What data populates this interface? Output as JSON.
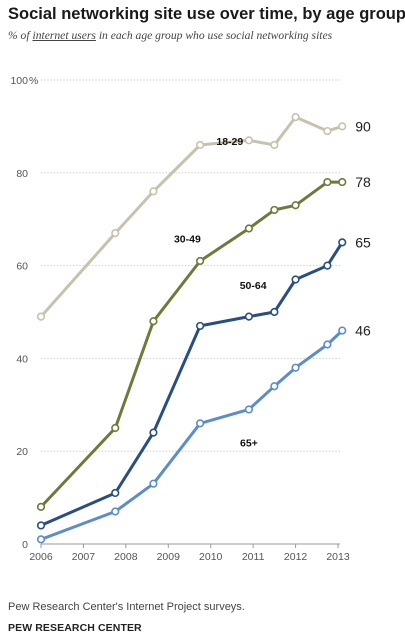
{
  "header": {
    "title": "Social networking site use over time, by age group",
    "subtitle_pre": "% of ",
    "subtitle_link": "internet users",
    "subtitle_post": " in each age group who use social networking sites"
  },
  "footer": {
    "source": "Pew Research Center's Internet Project surveys.",
    "org": "PEW RESEARCH CENTER"
  },
  "chart_data": {
    "type": "line",
    "title": "Social networking site use over time, by age group",
    "ylim": [
      0,
      100
    ],
    "xlim": [
      2006,
      2013
    ],
    "y_ticks": [
      {
        "value": 0,
        "label": "0"
      },
      {
        "value": 20,
        "label": "20"
      },
      {
        "value": 40,
        "label": "40"
      },
      {
        "value": 60,
        "label": "60"
      },
      {
        "value": 80,
        "label": "80"
      },
      {
        "value": 100,
        "label": "100"
      }
    ],
    "y_unit": "%",
    "x_ticks": [
      2006,
      2007,
      2008,
      2009,
      2010,
      2011,
      2012,
      2013
    ],
    "grid": true,
    "series": [
      {
        "name": "18-29",
        "color": "#c7c2ae",
        "points": [
          [
            2006.0,
            49
          ],
          [
            2007.75,
            67
          ],
          [
            2008.65,
            76
          ],
          [
            2009.75,
            86
          ],
          [
            2010.9,
            87
          ],
          [
            2011.5,
            86
          ],
          [
            2012.0,
            92
          ],
          [
            2012.75,
            89
          ],
          [
            2013.1,
            90
          ]
        ],
        "end_label": "90"
      },
      {
        "name": "30-49",
        "color": "#6e7a3b",
        "points": [
          [
            2006.0,
            8
          ],
          [
            2007.75,
            25
          ],
          [
            2008.65,
            48
          ],
          [
            2009.75,
            61
          ],
          [
            2010.9,
            68
          ],
          [
            2011.5,
            72
          ],
          [
            2012.0,
            73
          ],
          [
            2012.75,
            78
          ],
          [
            2013.1,
            78
          ]
        ],
        "end_label": "78"
      },
      {
        "name": "50-64",
        "color": "#284f82",
        "points": [
          [
            2006.0,
            4
          ],
          [
            2007.75,
            11
          ],
          [
            2008.65,
            24
          ],
          [
            2009.75,
            47
          ],
          [
            2010.9,
            49
          ],
          [
            2011.5,
            50
          ],
          [
            2012.0,
            57
          ],
          [
            2012.75,
            60
          ],
          [
            2013.1,
            65
          ]
        ],
        "end_label": "65"
      },
      {
        "name": "65+",
        "color": "#5b8ccc",
        "points": [
          [
            2006.0,
            1
          ],
          [
            2007.75,
            7
          ],
          [
            2008.65,
            13
          ],
          [
            2009.75,
            26
          ],
          [
            2010.9,
            29
          ],
          [
            2011.5,
            34
          ],
          [
            2012.0,
            38
          ],
          [
            2012.75,
            43
          ],
          [
            2013.1,
            46
          ]
        ],
        "end_label": "46"
      }
    ]
  }
}
